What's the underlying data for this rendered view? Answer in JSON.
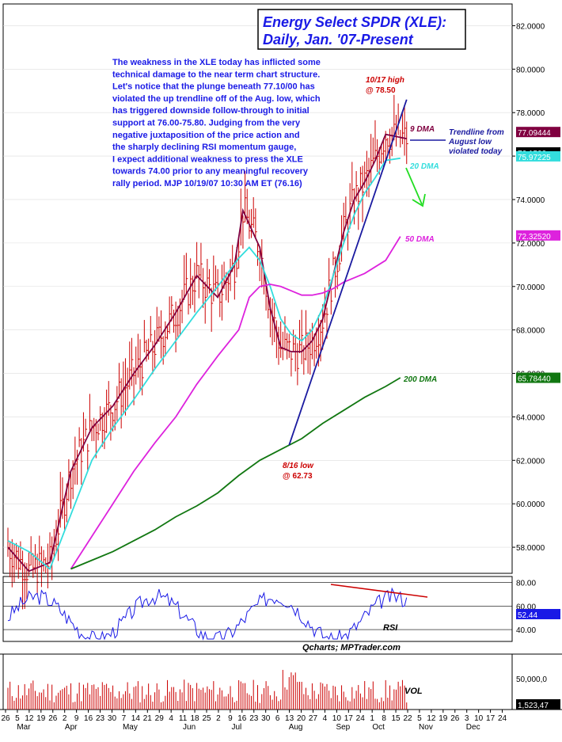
{
  "title_line1": "Energy Select SPDR  (XLE):",
  "title_line2": "Daily, Jan. '07-Present",
  "commentary": [
    "The weakness in the XLE today has inflicted some",
    "technical damage to the near term chart structure.",
    "Let's notice that the plunge beneath 77.10/00 has",
    "violated the up trendline off of the Aug. low, which",
    "has triggered downside follow-through to initial",
    "support at 76.00-75.80.  Judging from the very",
    "negative juxtaposition of the price action and",
    "the sharply declining RSI momentum gauge,",
    "I expect additional weakness to press the XLE",
    "towards 74.00 prior to any meaningful recovery",
    "rally period.  MJP 10/19/07  10:30 AM ET (76.16)"
  ],
  "source_label": "Qcharts; MPTrader.com",
  "colors": {
    "price_bars": "#cc0000",
    "dma9": "#800040",
    "dma20": "#33dddd",
    "dma50": "#dd22dd",
    "dma200": "#117711",
    "trendline": "#1a1aa0",
    "commentary_text": "#1a1ae6",
    "annotation_red": "#cc0000",
    "rsi_line": "#1a1ae6",
    "forecast_arrow": "#22dd22"
  },
  "chart_data": {
    "type": "line",
    "price_panel": {
      "ylim": [
        56.8,
        83.0
      ],
      "y_ticks": [
        "82.0000",
        "80.0000",
        "78.0000",
        "76.0000",
        "74.0000",
        "72.0000",
        "70.0000",
        "68.0000",
        "66.0000",
        "64.0000",
        "62.0000",
        "60.0000",
        "58.0000"
      ],
      "y_tick_values": [
        82,
        80,
        78,
        76,
        74,
        72,
        70,
        68,
        66,
        64,
        62,
        60,
        58
      ],
      "series": [
        {
          "name": "9 DMA",
          "x": [
            0,
            10,
            20,
            30,
            40,
            50,
            60,
            70,
            80,
            90,
            100,
            108,
            112,
            120,
            125,
            130,
            135,
            140,
            145,
            150,
            155,
            160,
            165,
            170,
            175,
            180,
            190
          ],
          "values": [
            58.0,
            56.9,
            57.3,
            61.5,
            63.5,
            64.5,
            66.0,
            67.3,
            68.8,
            70.5,
            69.5,
            71.0,
            73.5,
            71.8,
            69.0,
            67.2,
            67.0,
            67.0,
            67.5,
            68.5,
            70.5,
            72.5,
            74.0,
            74.8,
            75.8,
            77.0,
            76.8
          ]
        },
        {
          "name": "20 DMA",
          "x": [
            0,
            10,
            20,
            30,
            40,
            50,
            60,
            70,
            80,
            90,
            100,
            110,
            115,
            120,
            125,
            130,
            135,
            140,
            145,
            150,
            155,
            160,
            165,
            170,
            175,
            180,
            187
          ],
          "values": [
            58.3,
            57.8,
            57.0,
            59.5,
            62.0,
            63.5,
            64.8,
            66.2,
            67.5,
            68.8,
            70.0,
            71.3,
            71.8,
            71.2,
            70.0,
            68.5,
            67.8,
            67.5,
            68.0,
            69.0,
            70.5,
            72.0,
            73.3,
            74.3,
            75.0,
            75.8,
            75.9
          ]
        },
        {
          "name": "50 DMA",
          "x": [
            30,
            40,
            50,
            60,
            70,
            80,
            90,
            100,
            110,
            115,
            120,
            125,
            130,
            135,
            140,
            145,
            150,
            155,
            160,
            165,
            170,
            180,
            187
          ],
          "values": [
            57.0,
            58.5,
            60.0,
            61.5,
            62.8,
            64.0,
            65.5,
            66.8,
            68.0,
            69.5,
            70.0,
            70.1,
            70.0,
            69.8,
            69.6,
            69.6,
            69.7,
            69.9,
            70.2,
            70.4,
            70.6,
            71.2,
            72.3
          ]
        },
        {
          "name": "200 DMA",
          "x": [
            30,
            40,
            50,
            60,
            70,
            80,
            90,
            100,
            110,
            120,
            130,
            140,
            150,
            160,
            170,
            180,
            187
          ],
          "values": [
            57.0,
            57.4,
            57.8,
            58.3,
            58.8,
            59.4,
            59.9,
            60.5,
            61.3,
            62.0,
            62.5,
            63.0,
            63.7,
            64.3,
            64.9,
            65.4,
            65.8
          ]
        }
      ],
      "trendline": {
        "name": "Trendline from August low",
        "x": [
          134,
          190
        ],
        "values": [
          62.7,
          78.6
        ]
      },
      "last_values": [
        {
          "label": "77.09444",
          "value": 77.09,
          "color": "#800040"
        },
        {
          "label": "76.1500",
          "value": 76.15,
          "color": "#000000"
        },
        {
          "label": "75.97225",
          "value": 75.97,
          "color": "#33dddd"
        },
        {
          "label": "72.32520",
          "value": 72.33,
          "color": "#dd22dd"
        },
        {
          "label": "65.78440",
          "value": 65.78,
          "color": "#117711"
        }
      ]
    },
    "rsi_panel": {
      "ylim": [
        30,
        85
      ],
      "y_ticks": [
        "80.00",
        "60.00",
        "40.00"
      ],
      "y_tick_values": [
        80,
        60,
        40
      ],
      "last_value": "52.44",
      "label": "RSI"
    },
    "volume_panel": {
      "ylim": [
        0,
        60000
      ],
      "y_ticks": [
        "50,000,0"
      ],
      "last_value": "1,523,47",
      "label": "VOL"
    },
    "x_axis": {
      "day_ticks": [
        "26",
        "5",
        "12",
        "19",
        "26",
        "2",
        "9",
        "16",
        "23",
        "30",
        "7",
        "14",
        "21",
        "29",
        "4",
        "11",
        "18",
        "25",
        "2",
        "9",
        "16",
        "23",
        "30",
        "6",
        "13",
        "20",
        "27",
        "4",
        "10",
        "17",
        "24",
        "1",
        "8",
        "15",
        "22",
        "5",
        "12",
        "19",
        "26",
        "3",
        "10",
        "17",
        "24"
      ],
      "month_labels": [
        "Mar",
        "Apr",
        "May",
        "Jun",
        "Jul",
        "Aug",
        "Sep",
        "Oct",
        "Nov",
        "Dec"
      ]
    },
    "annotations": [
      {
        "text": "10/17 high",
        "sub": "@ 78.50"
      },
      {
        "text": "8/16 low",
        "sub": "@ 62.73"
      },
      {
        "text": "9 DMA"
      },
      {
        "text": "20 DMA"
      },
      {
        "text": "50 DMA"
      },
      {
        "text": "200 DMA"
      },
      {
        "text": "Trendline from",
        "sub": "August low",
        "sub2": "violated today"
      }
    ]
  }
}
